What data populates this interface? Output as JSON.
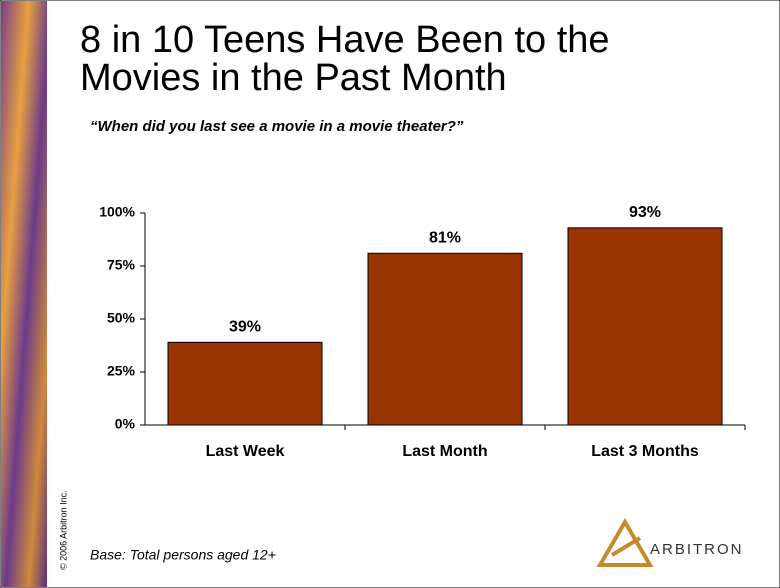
{
  "chart_data": {
    "type": "bar",
    "title_lines": [
      "8 in 10 Teens Have Been to the",
      "Movies in the Past Month"
    ],
    "subtitle": "“When did you last see a movie in a movie theater?”",
    "categories": [
      "Last Week",
      "Last Month",
      "Last 3 Months"
    ],
    "values": [
      39,
      81,
      93
    ],
    "value_labels": [
      "39%",
      "81%",
      "93%"
    ],
    "color": "#993300",
    "ylim": [
      0,
      100
    ],
    "yticks": [
      {
        "value": 0,
        "label": "0%"
      },
      {
        "value": 25,
        "label": "25%"
      },
      {
        "value": 50,
        "label": "50%"
      },
      {
        "value": 75,
        "label": "75%"
      },
      {
        "value": 100,
        "label": "100%"
      }
    ],
    "grid": false
  },
  "footnote": "Base:  Total persons aged 12+",
  "copyright": "© 2006 Arbitron Inc.",
  "logo": "ARBITRON"
}
